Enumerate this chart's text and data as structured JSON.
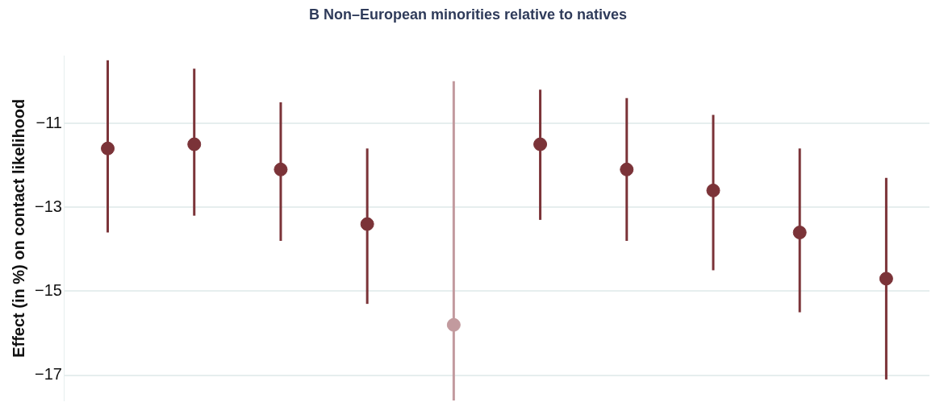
{
  "chart_data": {
    "type": "scatter",
    "title": "B Non–European minorities relative to natives",
    "ylabel": "Effect (in %) on contact likelihood",
    "categories": [
      null,
      null,
      null,
      null,
      null,
      null,
      null,
      null,
      null,
      null
    ],
    "values": [
      -11.6,
      -11.5,
      -12.1,
      -13.4,
      -15.8,
      -11.5,
      -12.1,
      -12.6,
      -13.6,
      -14.7
    ],
    "colors": [
      "#7b3338",
      "#7b3338",
      "#7b3338",
      "#7b3338",
      "#c29a9e",
      "#7b3338",
      "#7b3338",
      "#7b3338",
      "#7b3338",
      "#7b3338"
    ],
    "errors": [
      [
        -13.6,
        -9.5
      ],
      [
        -13.2,
        -9.7
      ],
      [
        -13.8,
        -10.5
      ],
      [
        -15.3,
        -11.6
      ],
      [
        -17.6,
        -10.0
      ],
      [
        -13.3,
        -10.2
      ],
      [
        -13.8,
        -10.4
      ],
      [
        -14.5,
        -10.8
      ],
      [
        -15.5,
        -11.6
      ],
      [
        -17.1,
        -12.3
      ]
    ],
    "ylim": [
      -17.6,
      -9.4
    ],
    "yticks": [
      -11,
      -13,
      -15,
      -17
    ],
    "grid": "y",
    "marker": "circle",
    "legend": false
  }
}
